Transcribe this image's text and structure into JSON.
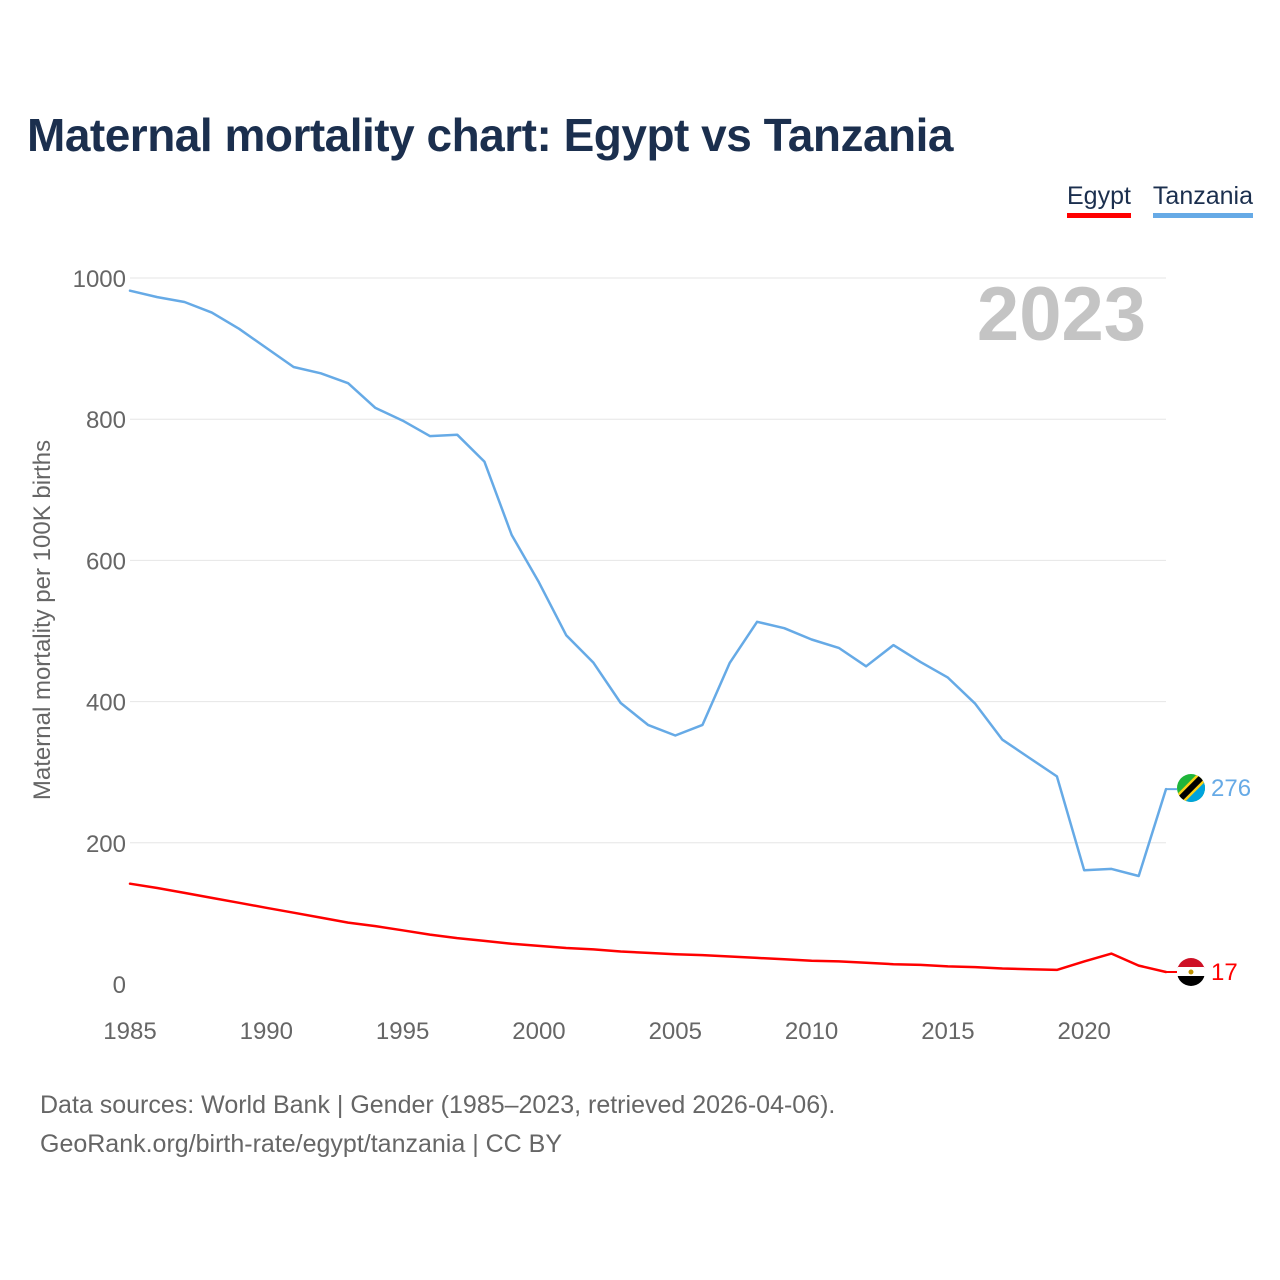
{
  "title": "Maternal mortality chart: Egypt vs Tanzania",
  "legend": {
    "egypt": "Egypt",
    "tanzania": "Tanzania"
  },
  "colors": {
    "egypt": "#ff0000",
    "tanzania": "#66aae6",
    "title": "#1b2f4e",
    "axis_text": "#666666",
    "grid": "#e6e6e6",
    "year_watermark": "#c4c4c4"
  },
  "footer": {
    "line1": "Data sources: World Bank | Gender (1985–2023, retrieved 2026-04-06).",
    "line2": "GeoRank.org/birth-rate/egypt/tanzania | CC BY"
  },
  "chart_data": {
    "type": "line",
    "title": "Maternal mortality chart: Egypt vs Tanzania",
    "ylabel": "Maternal mortality per 100K births",
    "xlabel": "",
    "year_label": "2023",
    "xlim": [
      1985,
      2023
    ],
    "ylim": [
      0,
      1000
    ],
    "x_ticks": [
      1985,
      1990,
      1995,
      2000,
      2005,
      2010,
      2015,
      2020
    ],
    "y_ticks": [
      0,
      200,
      400,
      600,
      800,
      1000
    ],
    "grid": true,
    "legend_position": "top-right",
    "x": [
      1985,
      1986,
      1987,
      1988,
      1989,
      1990,
      1991,
      1992,
      1993,
      1994,
      1995,
      1996,
      1997,
      1998,
      1999,
      2000,
      2001,
      2002,
      2003,
      2004,
      2005,
      2006,
      2007,
      2008,
      2009,
      2010,
      2011,
      2012,
      2013,
      2014,
      2015,
      2016,
      2017,
      2018,
      2019,
      2020,
      2021,
      2022,
      2023
    ],
    "series": [
      {
        "name": "Egypt",
        "end_label": "17",
        "values": [
          142,
          136,
          129,
          122,
          115,
          108,
          101,
          94,
          87,
          82,
          76,
          70,
          65,
          61,
          57,
          54,
          51,
          49,
          46,
          44,
          42,
          41,
          39,
          37,
          35,
          33,
          32,
          30,
          28,
          27,
          25,
          24,
          22,
          21,
          20,
          32,
          43,
          26,
          17
        ]
      },
      {
        "name": "Tanzania",
        "end_label": "276",
        "values": [
          982,
          973,
          966,
          951,
          928,
          901,
          874,
          865,
          851,
          816,
          798,
          776,
          778,
          740,
          636,
          569,
          494,
          455,
          398,
          367,
          352,
          367,
          455,
          513,
          504,
          488,
          476,
          450,
          480,
          456,
          434,
          397,
          346,
          320,
          294,
          161,
          163,
          153,
          276
        ]
      }
    ]
  }
}
